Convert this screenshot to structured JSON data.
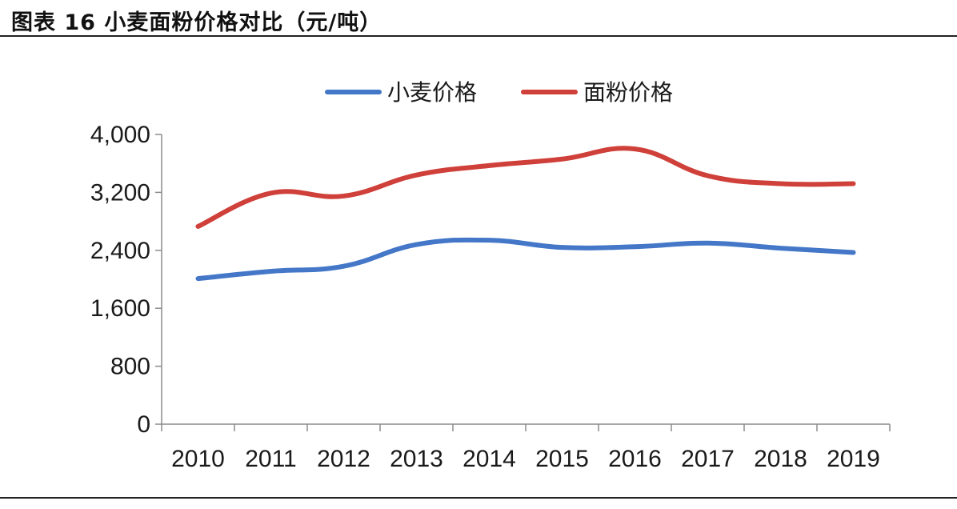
{
  "header": {
    "title": "图表 16 小麦面粉价格对比（元/吨）"
  },
  "colors": {
    "wheat": "#4477c8",
    "flour": "#d0403a",
    "axis": "#8c8c8c"
  },
  "chart_data": {
    "type": "line",
    "title": "",
    "xlabel": "",
    "ylabel": "",
    "categories": [
      "2010",
      "2011",
      "2012",
      "2013",
      "2014",
      "2015",
      "2016",
      "2017",
      "2018",
      "2019"
    ],
    "y_ticks": [
      "0",
      "800",
      "1,600",
      "2,400",
      "3,200",
      "4,000"
    ],
    "y_tick_values": [
      0,
      800,
      1600,
      2400,
      3200,
      4000
    ],
    "ylim": [
      0,
      4000
    ],
    "grid": false,
    "legend_position": "top",
    "series": [
      {
        "name": "小麦价格",
        "color": "#4477c8",
        "values": [
          2010,
          2110,
          2180,
          2480,
          2540,
          2440,
          2450,
          2500,
          2430,
          2370
        ]
      },
      {
        "name": "面粉价格",
        "color": "#d0403a",
        "values": [
          2730,
          3190,
          3150,
          3440,
          3570,
          3660,
          3800,
          3430,
          3320,
          3320
        ]
      }
    ]
  }
}
